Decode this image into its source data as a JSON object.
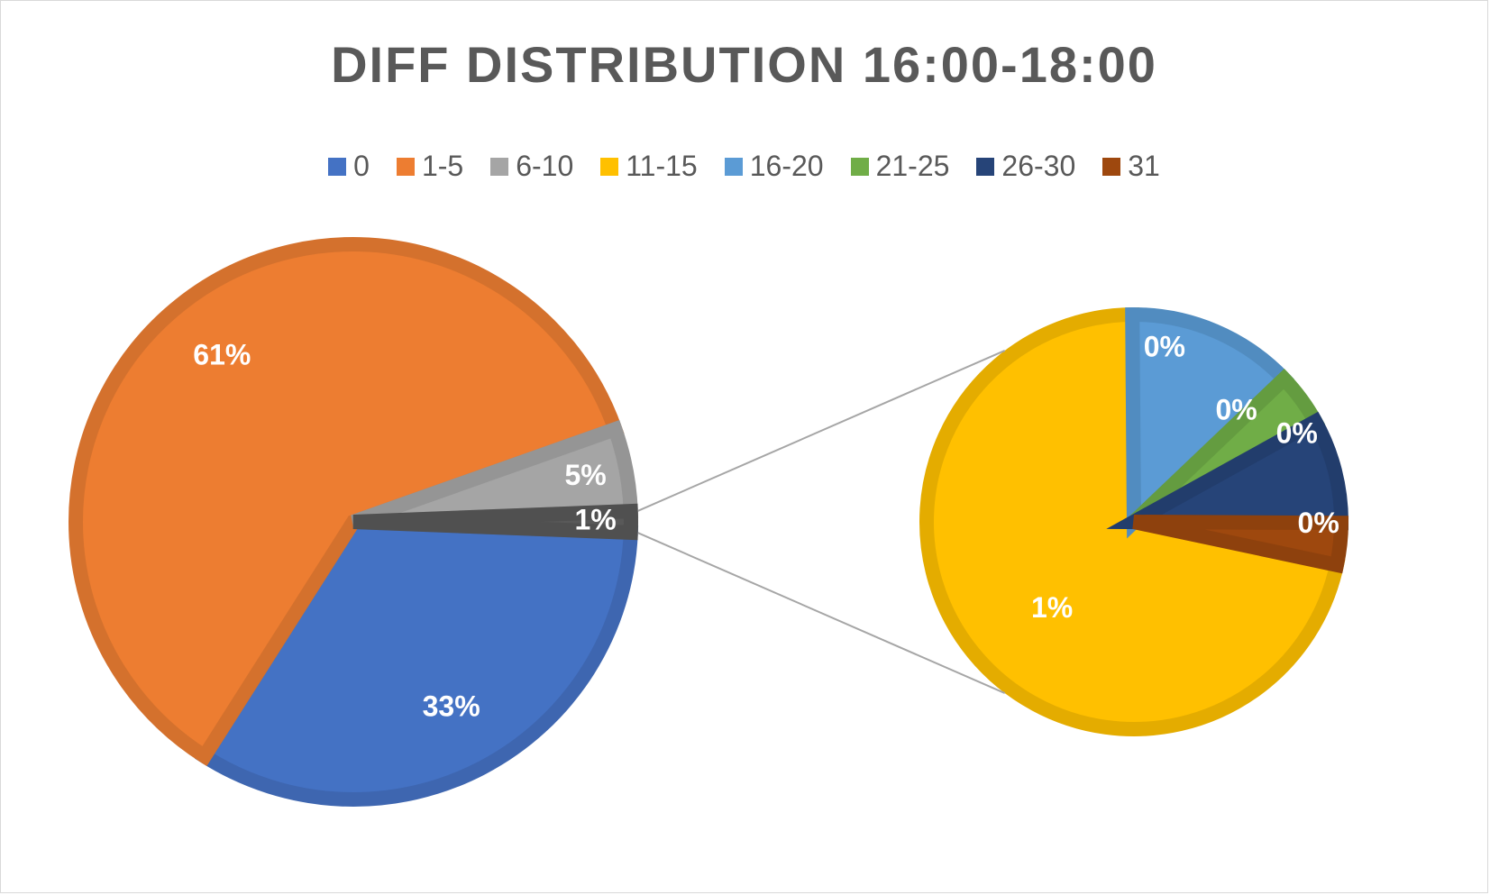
{
  "chart_data": {
    "type": "pie",
    "subtype": "pie-of-pie",
    "title": "DIFF DISTRIBUTION 16:00-18:00",
    "legend_position": "top",
    "slices": [
      {
        "category": "0",
        "percent": 33.4,
        "label": "33%",
        "color": "#4472C4",
        "border": "#3E66B0",
        "plot": "main"
      },
      {
        "category": "1-5",
        "percent": 60.6,
        "label": "61%",
        "color": "#ED7D31",
        "border": "#D4712D",
        "plot": "main"
      },
      {
        "category": "6-10",
        "percent": 4.8,
        "label": "5%",
        "color": "#A5A5A5",
        "border": "#959595",
        "plot": "main"
      },
      {
        "category": "11-15",
        "percent": 0.88,
        "label": "1%",
        "color": "#FFC000",
        "border": "#E4AC00",
        "plot": "secondary"
      },
      {
        "category": "16-20",
        "percent": 0.16,
        "label": "0%",
        "color": "#5B9BD5",
        "border": "#518CC0",
        "plot": "secondary"
      },
      {
        "category": "21-25",
        "percent": 0.05,
        "label": "0%",
        "color": "#70AD47",
        "border": "#649C40",
        "plot": "secondary"
      },
      {
        "category": "26-30",
        "percent": 0.1,
        "label": "0%",
        "color": "#264478",
        "border": "#223D6C",
        "plot": "secondary"
      },
      {
        "category": "31",
        "percent": 0.04,
        "label": "0%",
        "color": "#9E480E",
        "border": "#8E410D",
        "plot": "secondary"
      }
    ],
    "other_slice": {
      "label": "1%",
      "color": "#595959",
      "border": "#505050"
    }
  }
}
